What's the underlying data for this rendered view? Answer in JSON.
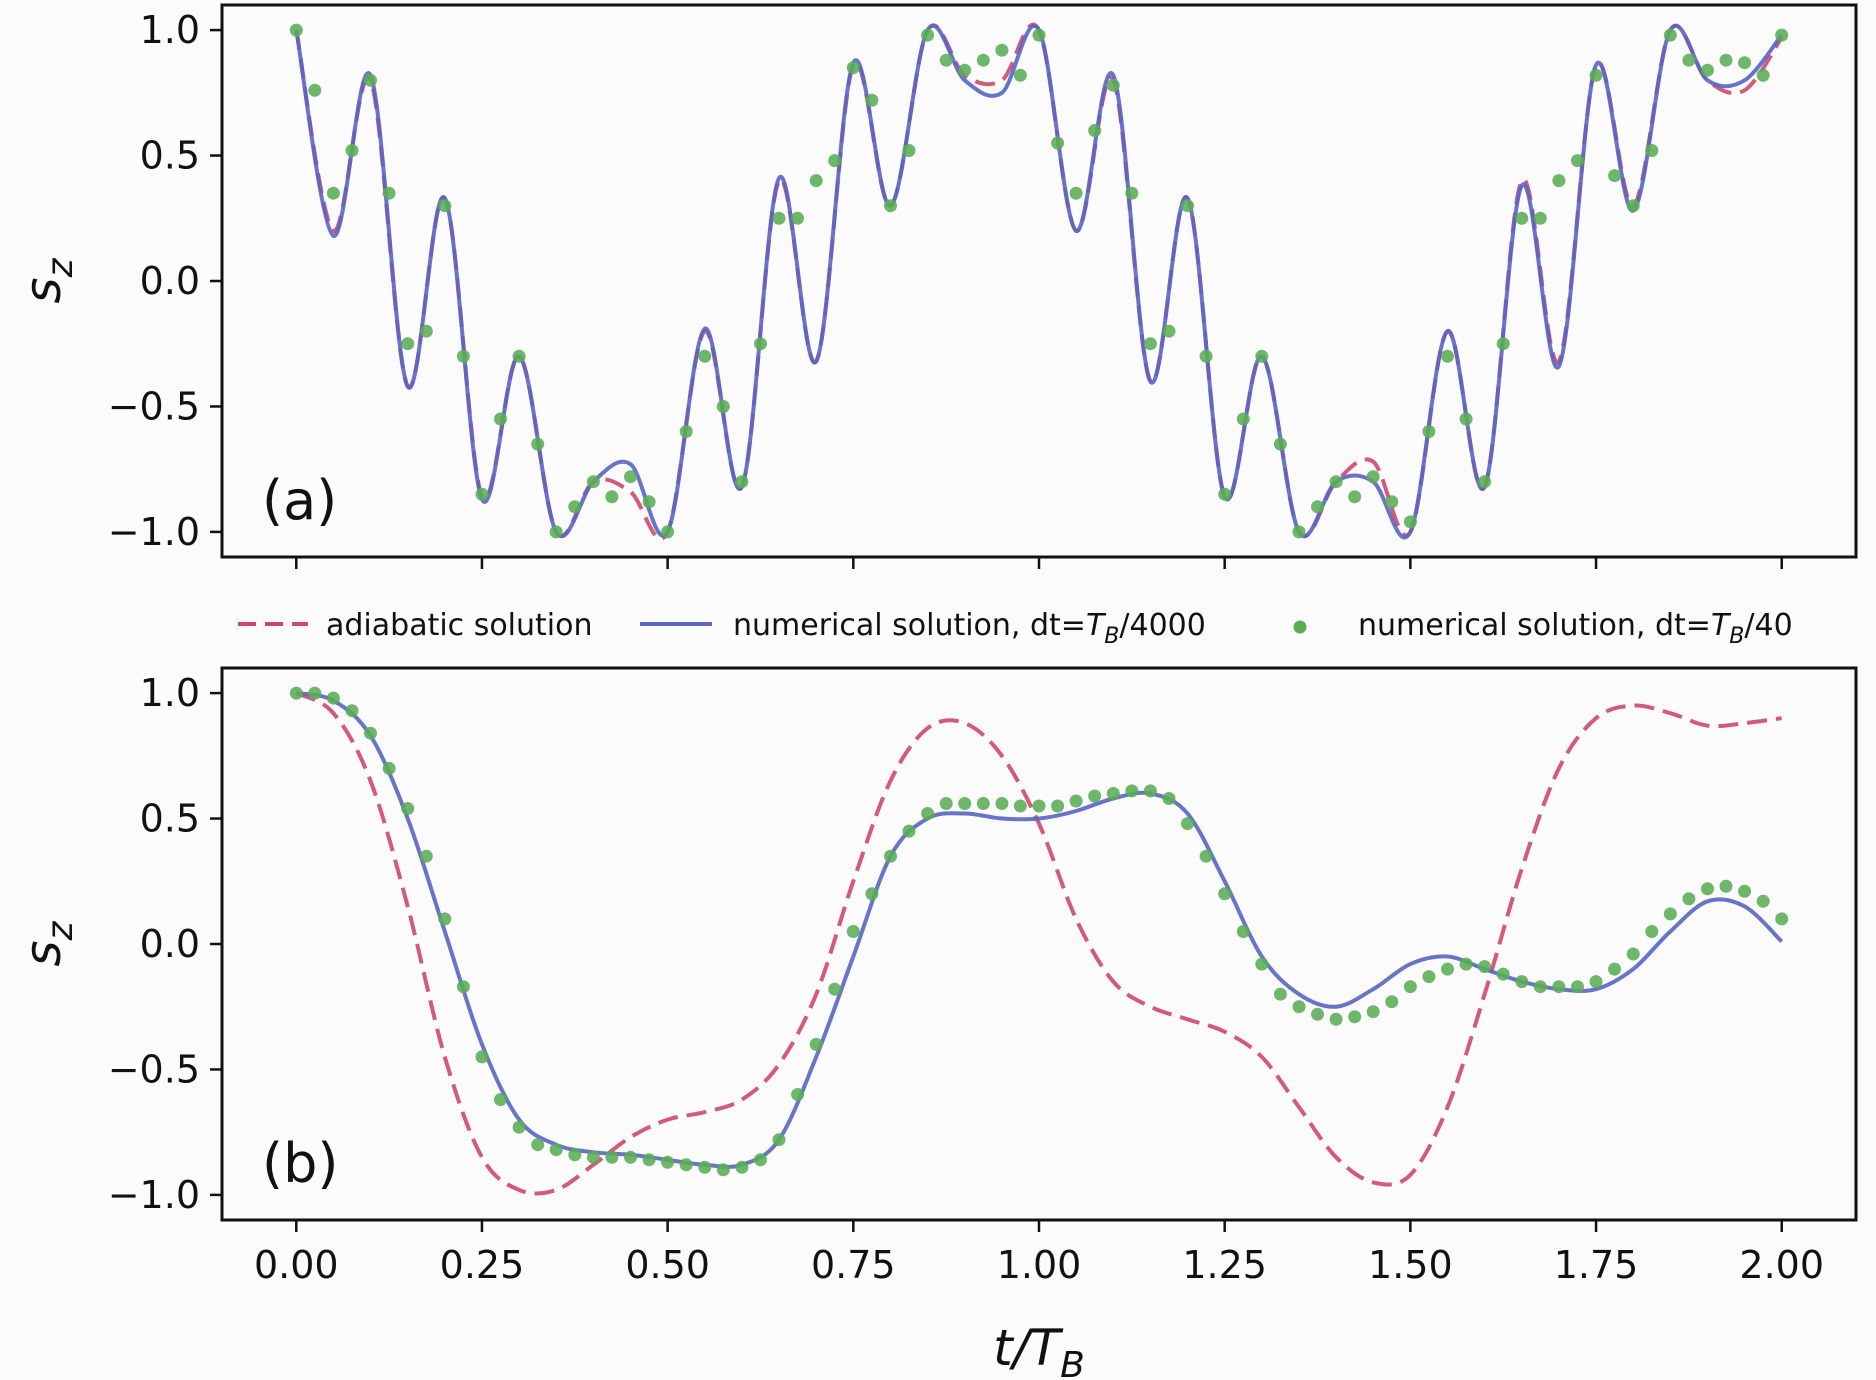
{
  "legend": [
    {
      "key": "adiabatic",
      "label": "adiabatic solution",
      "color": "#d0476a",
      "style": "dashed"
    },
    {
      "key": "fine",
      "label_prefix": "numerical solution, dt=",
      "label_sub": "4000",
      "color": "#5865c4",
      "style": "solid"
    },
    {
      "key": "coarse",
      "label_prefix": "numerical solution, dt=",
      "label_sub": "40",
      "color": "#5aad55",
      "style": "dots"
    }
  ],
  "legend_symbol": {
    "T": "T",
    "B": "B"
  },
  "chart_data": [
    {
      "type": "line",
      "panel": "(a)",
      "ylabel": "s",
      "ylabel_sub": "z",
      "xlim": [
        -0.1,
        2.1
      ],
      "ylim": [
        -1.1,
        1.1
      ],
      "yticks": [
        1.0,
        0.5,
        0.0,
        -0.5,
        -1.0
      ],
      "ytick_labels": [
        "1.0",
        "0.5",
        "0.0",
        "−0.5",
        "−1.0"
      ],
      "xticks": [
        0.0,
        0.25,
        0.5,
        0.75,
        1.0,
        1.25,
        1.5,
        1.75,
        2.0
      ],
      "series": [
        {
          "key": "adiabatic",
          "x": [
            0.0,
            0.05,
            0.1,
            0.15,
            0.2,
            0.25,
            0.3,
            0.35,
            0.4,
            0.45,
            0.5,
            0.55,
            0.6,
            0.65,
            0.7,
            0.75,
            0.8,
            0.85,
            0.9,
            0.95,
            1.0,
            1.05,
            1.1,
            1.15,
            1.2,
            1.25,
            1.3,
            1.35,
            1.4,
            1.45,
            1.5,
            1.55,
            1.6,
            1.65,
            1.7,
            1.75,
            1.8,
            1.85,
            1.9,
            1.95,
            2.0
          ],
          "y": [
            1.0,
            0.2,
            0.8,
            -0.42,
            0.33,
            -0.86,
            -0.3,
            -1.0,
            -0.8,
            -0.84,
            -1.0,
            -0.2,
            -0.82,
            0.4,
            -0.32,
            0.86,
            0.3,
            1.0,
            0.82,
            0.8,
            1.0,
            0.2,
            0.8,
            -0.4,
            0.33,
            -0.86,
            -0.3,
            -1.0,
            -0.8,
            -0.72,
            -1.0,
            -0.2,
            -0.82,
            0.4,
            -0.32,
            0.86,
            0.3,
            1.0,
            0.8,
            0.76,
            0.97
          ]
        },
        {
          "key": "fine",
          "x": [
            0.0,
            0.05,
            0.1,
            0.15,
            0.2,
            0.25,
            0.3,
            0.35,
            0.4,
            0.45,
            0.5,
            0.55,
            0.6,
            0.65,
            0.7,
            0.75,
            0.8,
            0.85,
            0.9,
            0.95,
            1.0,
            1.05,
            1.1,
            1.15,
            1.2,
            1.25,
            1.3,
            1.35,
            1.4,
            1.45,
            1.5,
            1.55,
            1.6,
            1.65,
            1.7,
            1.75,
            1.8,
            1.85,
            1.9,
            1.95,
            2.0
          ],
          "y": [
            1.0,
            0.18,
            0.82,
            -0.42,
            0.33,
            -0.87,
            -0.3,
            -1.0,
            -0.8,
            -0.73,
            -1.0,
            -0.19,
            -0.82,
            0.41,
            -0.32,
            0.87,
            0.3,
            1.0,
            0.8,
            0.75,
            1.0,
            0.2,
            0.82,
            -0.4,
            0.33,
            -0.86,
            -0.3,
            -1.0,
            -0.8,
            -0.8,
            -1.0,
            -0.2,
            -0.82,
            0.38,
            -0.34,
            0.86,
            0.28,
            1.0,
            0.8,
            0.8,
            0.98
          ]
        },
        {
          "key": "coarse",
          "x": [
            0.0,
            0.025,
            0.05,
            0.075,
            0.1,
            0.125,
            0.15,
            0.175,
            0.2,
            0.225,
            0.25,
            0.275,
            0.3,
            0.325,
            0.35,
            0.375,
            0.4,
            0.425,
            0.45,
            0.475,
            0.5,
            0.525,
            0.55,
            0.575,
            0.6,
            0.625,
            0.65,
            0.675,
            0.7,
            0.725,
            0.75,
            0.775,
            0.8,
            0.825,
            0.85,
            0.875,
            0.9,
            0.925,
            0.95,
            0.975,
            1.0,
            1.025,
            1.05,
            1.075,
            1.1,
            1.125,
            1.15,
            1.175,
            1.2,
            1.225,
            1.25,
            1.275,
            1.3,
            1.325,
            1.35,
            1.375,
            1.4,
            1.425,
            1.45,
            1.475,
            1.5,
            1.525,
            1.55,
            1.575,
            1.6,
            1.625,
            1.65,
            1.675,
            1.7,
            1.725,
            1.75,
            1.775,
            1.8,
            1.825,
            1.85,
            1.875,
            1.9,
            1.925,
            1.95,
            1.975,
            2.0
          ],
          "y": [
            1.0,
            0.76,
            0.35,
            0.52,
            0.8,
            0.35,
            -0.25,
            -0.2,
            0.3,
            -0.3,
            -0.85,
            -0.55,
            -0.3,
            -0.65,
            -1.0,
            -0.9,
            -0.8,
            -0.86,
            -0.78,
            -0.88,
            -1.0,
            -0.6,
            -0.3,
            -0.5,
            -0.8,
            -0.25,
            0.25,
            0.25,
            0.4,
            0.48,
            0.85,
            0.72,
            0.3,
            0.52,
            0.98,
            0.88,
            0.84,
            0.88,
            0.92,
            0.82,
            0.98,
            0.55,
            0.35,
            0.6,
            0.78,
            0.35,
            -0.25,
            -0.2,
            0.3,
            -0.3,
            -0.85,
            -0.55,
            -0.3,
            -0.65,
            -1.0,
            -0.9,
            -0.8,
            -0.86,
            -0.78,
            -0.88,
            -0.96,
            -0.6,
            -0.3,
            -0.55,
            -0.8,
            -0.25,
            0.25,
            0.25,
            0.4,
            0.48,
            0.82,
            0.42,
            0.3,
            0.52,
            0.98,
            0.88,
            0.84,
            0.88,
            0.87,
            0.82,
            0.98
          ]
        }
      ]
    },
    {
      "type": "line",
      "panel": "(b)",
      "ylabel": "s",
      "ylabel_sub": "z",
      "xlabel": "t/T",
      "xlabel_sub": "B",
      "xlim": [
        -0.1,
        2.1
      ],
      "ylim": [
        -1.1,
        1.1
      ],
      "yticks": [
        1.0,
        0.5,
        0.0,
        -0.5,
        -1.0
      ],
      "ytick_labels": [
        "1.0",
        "0.5",
        "0.0",
        "−0.5",
        "−1.0"
      ],
      "xticks": [
        0.0,
        0.25,
        0.5,
        0.75,
        1.0,
        1.25,
        1.5,
        1.75,
        2.0
      ],
      "xtick_labels": [
        "0.00",
        "0.25",
        "0.50",
        "0.75",
        "1.00",
        "1.25",
        "1.50",
        "1.75",
        "2.00"
      ],
      "series": [
        {
          "key": "adiabatic",
          "x": [
            0.0,
            0.05,
            0.1,
            0.15,
            0.2,
            0.25,
            0.3,
            0.35,
            0.4,
            0.45,
            0.5,
            0.55,
            0.6,
            0.65,
            0.7,
            0.75,
            0.8,
            0.85,
            0.9,
            0.95,
            1.0,
            1.05,
            1.1,
            1.15,
            1.2,
            1.25,
            1.3,
            1.35,
            1.4,
            1.45,
            1.5,
            1.55,
            1.6,
            1.65,
            1.7,
            1.75,
            1.8,
            1.85,
            1.9,
            1.95,
            2.0
          ],
          "y": [
            1.0,
            0.92,
            0.65,
            0.15,
            -0.45,
            -0.85,
            -0.98,
            -0.98,
            -0.88,
            -0.77,
            -0.7,
            -0.67,
            -0.62,
            -0.48,
            -0.2,
            0.25,
            0.65,
            0.86,
            0.88,
            0.75,
            0.48,
            0.1,
            -0.15,
            -0.25,
            -0.3,
            -0.35,
            -0.45,
            -0.65,
            -0.85,
            -0.95,
            -0.92,
            -0.65,
            -0.2,
            0.3,
            0.7,
            0.9,
            0.95,
            0.92,
            0.87,
            0.88,
            0.9
          ]
        },
        {
          "key": "fine",
          "x": [
            0.0,
            0.05,
            0.1,
            0.15,
            0.2,
            0.25,
            0.3,
            0.35,
            0.4,
            0.45,
            0.5,
            0.55,
            0.6,
            0.65,
            0.7,
            0.75,
            0.8,
            0.85,
            0.9,
            0.95,
            1.0,
            1.05,
            1.1,
            1.15,
            1.2,
            1.25,
            1.3,
            1.35,
            1.4,
            1.45,
            1.5,
            1.55,
            1.6,
            1.65,
            1.7,
            1.75,
            1.8,
            1.85,
            1.9,
            1.95,
            2.0
          ],
          "y": [
            1.0,
            0.97,
            0.83,
            0.5,
            0.05,
            -0.4,
            -0.7,
            -0.8,
            -0.83,
            -0.84,
            -0.86,
            -0.88,
            -0.88,
            -0.78,
            -0.45,
            -0.05,
            0.35,
            0.5,
            0.52,
            0.5,
            0.5,
            0.53,
            0.58,
            0.6,
            0.52,
            0.25,
            -0.05,
            -0.2,
            -0.25,
            -0.18,
            -0.08,
            -0.05,
            -0.1,
            -0.15,
            -0.18,
            -0.18,
            -0.1,
            0.05,
            0.17,
            0.15,
            0.01
          ]
        },
        {
          "key": "coarse",
          "x": [
            0.0,
            0.025,
            0.05,
            0.075,
            0.1,
            0.125,
            0.15,
            0.175,
            0.2,
            0.225,
            0.25,
            0.275,
            0.3,
            0.325,
            0.35,
            0.375,
            0.4,
            0.425,
            0.45,
            0.475,
            0.5,
            0.525,
            0.55,
            0.575,
            0.6,
            0.625,
            0.65,
            0.675,
            0.7,
            0.725,
            0.75,
            0.775,
            0.8,
            0.825,
            0.85,
            0.875,
            0.9,
            0.925,
            0.95,
            0.975,
            1.0,
            1.025,
            1.05,
            1.075,
            1.1,
            1.125,
            1.15,
            1.175,
            1.2,
            1.225,
            1.25,
            1.275,
            1.3,
            1.325,
            1.35,
            1.375,
            1.4,
            1.425,
            1.45,
            1.475,
            1.5,
            1.525,
            1.55,
            1.575,
            1.6,
            1.625,
            1.65,
            1.675,
            1.7,
            1.725,
            1.75,
            1.775,
            1.8,
            1.825,
            1.85,
            1.875,
            1.9,
            1.925,
            1.95,
            1.975,
            2.0
          ],
          "y": [
            1.0,
            1.0,
            0.98,
            0.93,
            0.84,
            0.7,
            0.54,
            0.35,
            0.1,
            -0.17,
            -0.45,
            -0.62,
            -0.73,
            -0.8,
            -0.82,
            -0.84,
            -0.85,
            -0.85,
            -0.85,
            -0.86,
            -0.87,
            -0.88,
            -0.89,
            -0.9,
            -0.89,
            -0.86,
            -0.78,
            -0.6,
            -0.4,
            -0.18,
            0.05,
            0.2,
            0.35,
            0.45,
            0.52,
            0.56,
            0.56,
            0.56,
            0.56,
            0.55,
            0.55,
            0.55,
            0.57,
            0.59,
            0.6,
            0.61,
            0.61,
            0.58,
            0.48,
            0.35,
            0.2,
            0.05,
            -0.08,
            -0.2,
            -0.25,
            -0.28,
            -0.3,
            -0.29,
            -0.27,
            -0.23,
            -0.17,
            -0.13,
            -0.1,
            -0.08,
            -0.09,
            -0.12,
            -0.15,
            -0.17,
            -0.17,
            -0.17,
            -0.15,
            -0.1,
            -0.04,
            0.05,
            0.12,
            0.18,
            0.22,
            0.23,
            0.21,
            0.17,
            0.1
          ]
        }
      ]
    }
  ]
}
